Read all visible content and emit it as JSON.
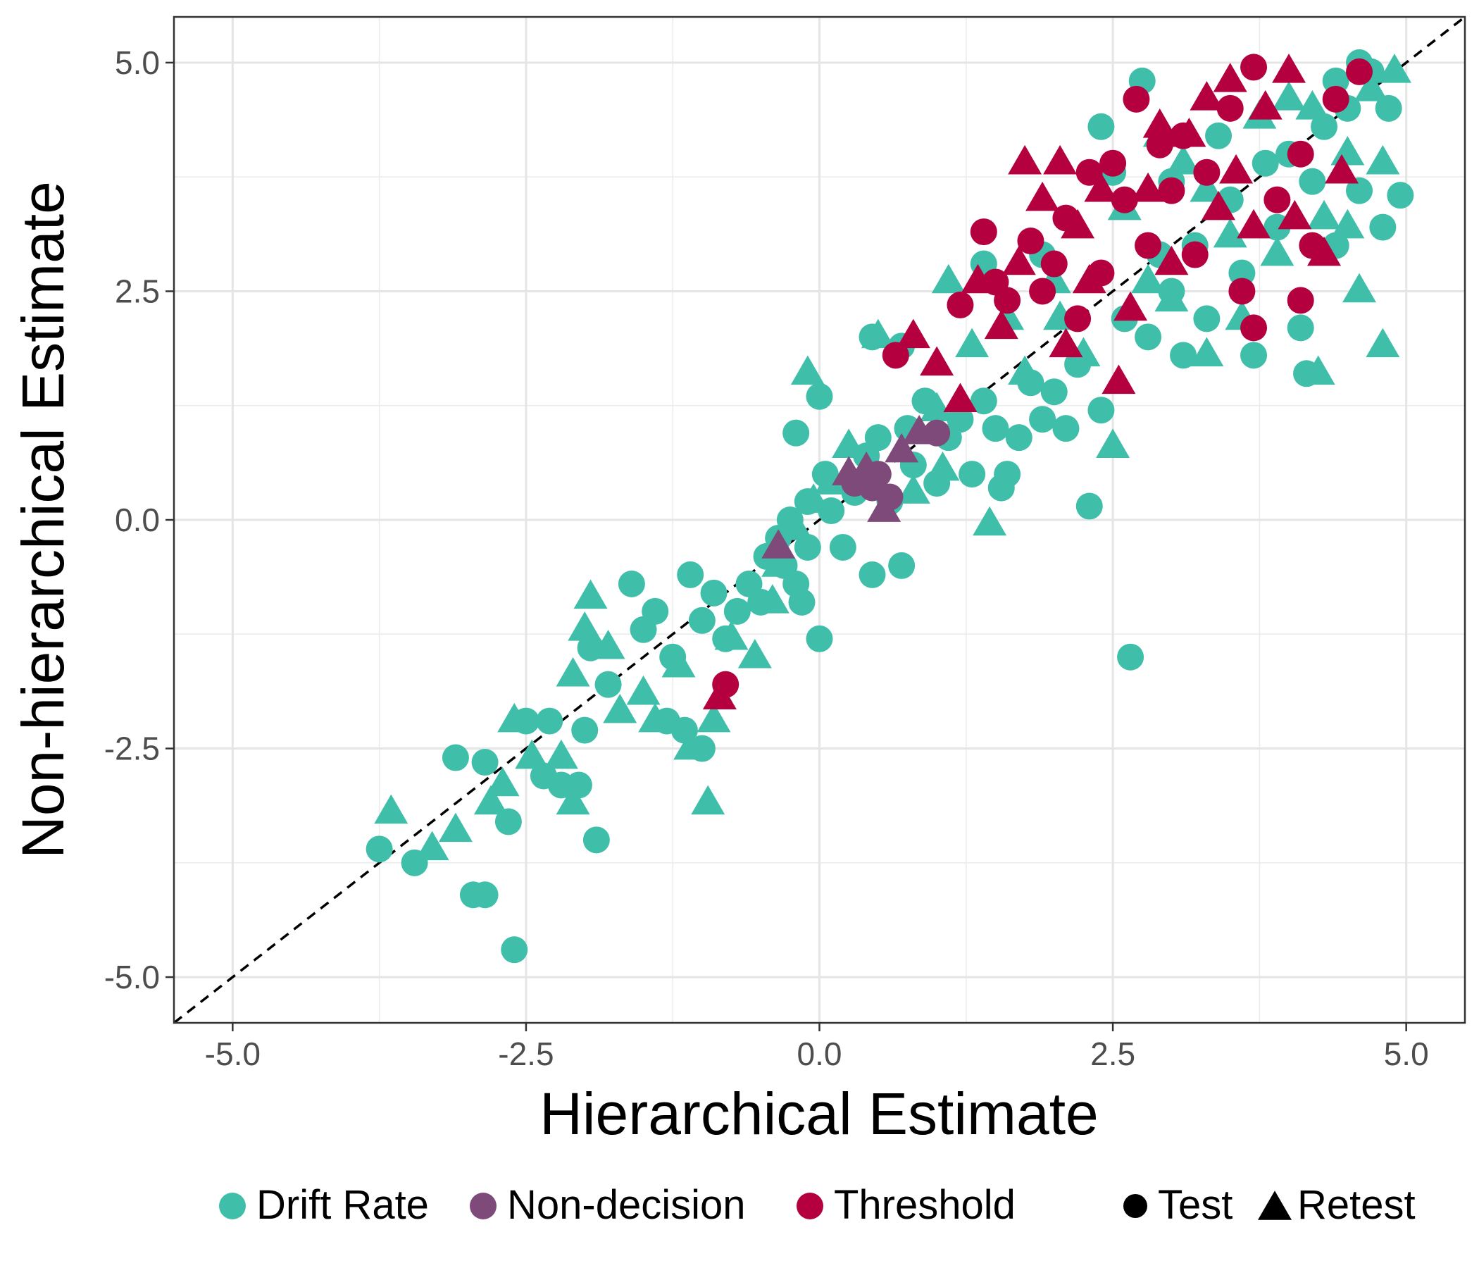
{
  "chart_data": {
    "type": "scatter",
    "xlabel": "Hierarchical Estimate",
    "ylabel": "Non-hierarchical Estimate",
    "xlim": [
      -5.5,
      5.5
    ],
    "ylim": [
      -5.5,
      5.5
    ],
    "x_ticks": [
      "-5.0",
      "-2.5",
      "0.0",
      "2.5",
      "5.0"
    ],
    "y_ticks": [
      "-5.0",
      "-2.5",
      "0.0",
      "2.5",
      "5.0"
    ],
    "x_tick_values": [
      -5.0,
      -2.5,
      0.0,
      2.5,
      5.0
    ],
    "y_tick_values": [
      -5.0,
      -2.5,
      0.0,
      2.5,
      5.0
    ],
    "grid": true,
    "reference_line": {
      "type": "identity",
      "style": "dashed",
      "color": "#000000"
    },
    "legend_position": "bottom",
    "colors": {
      "Drift Rate": "#3fbfaa",
      "Non-decision": "#7e4a7a",
      "Threshold": "#b5003f"
    },
    "legend": {
      "colors": [
        {
          "label": "Drift Rate",
          "color": "#3fbfaa"
        },
        {
          "label": "Non-decision",
          "color": "#7e4a7a"
        },
        {
          "label": "Threshold",
          "color": "#b5003f"
        }
      ],
      "shapes": [
        {
          "label": "Test",
          "shape": "circle"
        },
        {
          "label": "Retest",
          "shape": "triangle"
        }
      ]
    },
    "series": [
      {
        "name": "Drift Rate",
        "shape": "circle",
        "color": "#3fbfaa",
        "points": [
          [
            -3.75,
            -3.6
          ],
          [
            -3.45,
            -3.75
          ],
          [
            -2.95,
            -4.1
          ],
          [
            -2.85,
            -4.1
          ],
          [
            -2.6,
            -4.7
          ],
          [
            -3.1,
            -2.6
          ],
          [
            -2.85,
            -2.65
          ],
          [
            -2.65,
            -3.3
          ],
          [
            -2.5,
            -2.2
          ],
          [
            -2.3,
            -2.2
          ],
          [
            -2.2,
            -2.9
          ],
          [
            -2.35,
            -2.8
          ],
          [
            -2.05,
            -2.9
          ],
          [
            -1.9,
            -3.5
          ],
          [
            -2.0,
            -2.3
          ],
          [
            -1.95,
            -1.4
          ],
          [
            -1.8,
            -1.8
          ],
          [
            -1.6,
            -0.7
          ],
          [
            -1.5,
            -1.2
          ],
          [
            -1.4,
            -1.0
          ],
          [
            -1.25,
            -1.5
          ],
          [
            -1.1,
            -0.6
          ],
          [
            -1.0,
            -1.1
          ],
          [
            -0.9,
            -0.8
          ],
          [
            -0.8,
            -1.3
          ],
          [
            -1.3,
            -2.2
          ],
          [
            -1.15,
            -2.3
          ],
          [
            -1.0,
            -2.5
          ],
          [
            -0.7,
            -1.0
          ],
          [
            -0.6,
            -0.7
          ],
          [
            -0.5,
            -0.9
          ],
          [
            -0.45,
            -0.4
          ],
          [
            -0.3,
            -0.5
          ],
          [
            -0.2,
            -0.7
          ],
          [
            -0.1,
            -0.3
          ],
          [
            -0.15,
            -0.9
          ],
          [
            0.0,
            -1.3
          ],
          [
            -0.35,
            -0.2
          ],
          [
            -0.25,
            0.0
          ],
          [
            -0.1,
            0.2
          ],
          [
            0.05,
            0.5
          ],
          [
            0.1,
            0.1
          ],
          [
            0.2,
            -0.3
          ],
          [
            0.3,
            0.3
          ],
          [
            0.4,
            0.7
          ],
          [
            0.45,
            -0.6
          ],
          [
            0.5,
            0.9
          ],
          [
            0.6,
            0.2
          ],
          [
            0.7,
            -0.5
          ],
          [
            0.75,
            1.0
          ],
          [
            0.8,
            0.6
          ],
          [
            0.9,
            1.3
          ],
          [
            1.0,
            0.4
          ],
          [
            1.1,
            0.9
          ],
          [
            1.2,
            1.1
          ],
          [
            1.3,
            0.5
          ],
          [
            1.4,
            1.3
          ],
          [
            1.5,
            1.0
          ],
          [
            1.6,
            0.5
          ],
          [
            1.55,
            0.35
          ],
          [
            1.7,
            0.9
          ],
          [
            1.8,
            1.5
          ],
          [
            1.9,
            1.1
          ],
          [
            2.0,
            1.4
          ],
          [
            2.1,
            1.0
          ],
          [
            2.2,
            1.7
          ],
          [
            2.3,
            0.15
          ],
          [
            2.4,
            1.2
          ],
          [
            2.65,
            -1.5
          ],
          [
            -0.2,
            0.95
          ],
          [
            0.0,
            1.35
          ],
          [
            0.45,
            2.0
          ],
          [
            0.7,
            1.9
          ],
          [
            1.4,
            2.8
          ],
          [
            1.9,
            2.9
          ],
          [
            2.4,
            4.3
          ],
          [
            2.75,
            4.8
          ],
          [
            2.5,
            3.8
          ],
          [
            2.6,
            2.2
          ],
          [
            2.8,
            2.0
          ],
          [
            3.0,
            2.5
          ],
          [
            3.1,
            1.8
          ],
          [
            3.2,
            3.0
          ],
          [
            3.3,
            2.2
          ],
          [
            3.5,
            3.5
          ],
          [
            3.6,
            2.7
          ],
          [
            3.7,
            1.8
          ],
          [
            3.8,
            3.9
          ],
          [
            3.9,
            3.2
          ],
          [
            4.0,
            4.0
          ],
          [
            4.1,
            2.1
          ],
          [
            4.15,
            1.6
          ],
          [
            4.2,
            3.7
          ],
          [
            4.3,
            4.3
          ],
          [
            4.4,
            3.0
          ],
          [
            4.5,
            4.5
          ],
          [
            4.6,
            3.6
          ],
          [
            4.7,
            4.9
          ],
          [
            4.8,
            3.2
          ],
          [
            4.95,
            3.55
          ],
          [
            4.6,
            5.0
          ],
          [
            4.4,
            4.8
          ],
          [
            4.85,
            4.5
          ],
          [
            3.4,
            4.2
          ],
          [
            3.0,
            3.7
          ],
          [
            2.9,
            2.9
          ]
        ]
      },
      {
        "name": "Drift Rate",
        "shape": "triangle",
        "color": "#3fbfaa",
        "points": [
          [
            -3.65,
            -3.2
          ],
          [
            -3.3,
            -3.6
          ],
          [
            -3.1,
            -3.4
          ],
          [
            -2.8,
            -3.1
          ],
          [
            -2.7,
            -2.9
          ],
          [
            -2.6,
            -2.2
          ],
          [
            -2.45,
            -2.6
          ],
          [
            -2.2,
            -2.6
          ],
          [
            -2.1,
            -3.1
          ],
          [
            -2.1,
            -1.7
          ],
          [
            -2.0,
            -1.2
          ],
          [
            -1.95,
            -0.85
          ],
          [
            -1.8,
            -1.4
          ],
          [
            -1.7,
            -2.1
          ],
          [
            -1.5,
            -1.9
          ],
          [
            -1.4,
            -2.2
          ],
          [
            -1.2,
            -1.6
          ],
          [
            -1.1,
            -2.5
          ],
          [
            -0.95,
            -3.1
          ],
          [
            -0.9,
            -2.2
          ],
          [
            -0.75,
            -1.3
          ],
          [
            -0.55,
            -1.5
          ],
          [
            -0.4,
            -0.9
          ],
          [
            -0.35,
            -0.5
          ],
          [
            -0.2,
            -0.1
          ],
          [
            -0.05,
            0.2
          ],
          [
            0.1,
            0.4
          ],
          [
            -0.1,
            1.6
          ],
          [
            0.25,
            0.8
          ],
          [
            0.5,
            2.0
          ],
          [
            0.8,
            0.3
          ],
          [
            1.0,
            1.2
          ],
          [
            1.05,
            0.55
          ],
          [
            1.1,
            2.6
          ],
          [
            1.3,
            1.9
          ],
          [
            1.45,
            -0.05
          ],
          [
            1.6,
            2.2
          ],
          [
            1.75,
            1.6
          ],
          [
            2.0,
            2.6
          ],
          [
            2.05,
            2.2
          ],
          [
            2.25,
            1.8
          ],
          [
            2.5,
            0.8
          ],
          [
            2.6,
            3.4
          ],
          [
            2.8,
            2.6
          ],
          [
            3.0,
            2.4
          ],
          [
            3.1,
            3.9
          ],
          [
            3.3,
            1.8
          ],
          [
            3.5,
            3.1
          ],
          [
            3.6,
            2.2
          ],
          [
            3.75,
            4.4
          ],
          [
            3.9,
            2.9
          ],
          [
            4.0,
            4.6
          ],
          [
            4.25,
            1.6
          ],
          [
            4.3,
            3.3
          ],
          [
            4.5,
            4.0
          ],
          [
            4.6,
            2.5
          ],
          [
            4.7,
            4.7
          ],
          [
            4.8,
            3.9
          ],
          [
            4.8,
            1.9
          ],
          [
            4.9,
            4.9
          ],
          [
            4.5,
            3.2
          ],
          [
            4.2,
            4.5
          ],
          [
            3.3,
            3.6
          ],
          [
            2.9,
            4.2
          ]
        ]
      },
      {
        "name": "Non-decision",
        "shape": "circle",
        "color": "#7e4a7a",
        "points": [
          [
            0.3,
            0.4
          ],
          [
            0.45,
            0.35
          ],
          [
            0.5,
            0.5
          ],
          [
            1.0,
            0.95
          ],
          [
            0.6,
            0.25
          ]
        ]
      },
      {
        "name": "Non-decision",
        "shape": "triangle",
        "color": "#7e4a7a",
        "points": [
          [
            0.25,
            0.5
          ],
          [
            0.4,
            0.55
          ],
          [
            0.7,
            0.75
          ],
          [
            0.85,
            0.95
          ],
          [
            -0.35,
            -0.3
          ],
          [
            0.55,
            0.1
          ]
        ]
      },
      {
        "name": "Threshold",
        "shape": "circle",
        "color": "#b5003f",
        "points": [
          [
            -0.8,
            -1.8
          ],
          [
            0.65,
            1.8
          ],
          [
            1.2,
            2.35
          ],
          [
            1.4,
            3.15
          ],
          [
            1.5,
            2.6
          ],
          [
            1.6,
            2.4
          ],
          [
            1.8,
            3.05
          ],
          [
            1.9,
            2.5
          ],
          [
            2.0,
            2.8
          ],
          [
            2.1,
            3.3
          ],
          [
            2.2,
            2.2
          ],
          [
            2.3,
            3.8
          ],
          [
            2.4,
            2.7
          ],
          [
            2.5,
            3.9
          ],
          [
            2.6,
            3.5
          ],
          [
            2.7,
            4.6
          ],
          [
            2.8,
            3.0
          ],
          [
            2.9,
            4.1
          ],
          [
            3.0,
            3.6
          ],
          [
            3.1,
            4.2
          ],
          [
            3.2,
            2.9
          ],
          [
            3.3,
            3.8
          ],
          [
            3.5,
            4.5
          ],
          [
            3.6,
            2.5
          ],
          [
            3.7,
            2.1
          ],
          [
            3.7,
            4.95
          ],
          [
            3.9,
            3.5
          ],
          [
            4.1,
            4.0
          ],
          [
            4.2,
            3.0
          ],
          [
            4.4,
            4.6
          ],
          [
            4.6,
            4.9
          ],
          [
            4.1,
            2.4
          ]
        ]
      },
      {
        "name": "Threshold",
        "shape": "triangle",
        "color": "#b5003f",
        "points": [
          [
            -0.85,
            -1.95
          ],
          [
            0.8,
            2.0
          ],
          [
            1.0,
            1.7
          ],
          [
            1.2,
            1.3
          ],
          [
            1.35,
            2.6
          ],
          [
            1.55,
            2.1
          ],
          [
            1.7,
            2.8
          ],
          [
            1.75,
            3.9
          ],
          [
            1.9,
            3.5
          ],
          [
            2.05,
            3.9
          ],
          [
            2.1,
            1.9
          ],
          [
            2.2,
            3.2
          ],
          [
            2.3,
            2.6
          ],
          [
            2.4,
            3.6
          ],
          [
            2.55,
            1.5
          ],
          [
            2.65,
            2.3
          ],
          [
            2.8,
            3.6
          ],
          [
            2.9,
            4.3
          ],
          [
            3.0,
            2.8
          ],
          [
            3.15,
            4.2
          ],
          [
            3.3,
            4.6
          ],
          [
            3.4,
            3.4
          ],
          [
            3.5,
            4.8
          ],
          [
            3.55,
            3.8
          ],
          [
            3.7,
            3.2
          ],
          [
            3.8,
            4.5
          ],
          [
            4.0,
            4.9
          ],
          [
            4.05,
            3.3
          ],
          [
            4.3,
            2.9
          ],
          [
            4.45,
            3.8
          ]
        ]
      }
    ]
  }
}
